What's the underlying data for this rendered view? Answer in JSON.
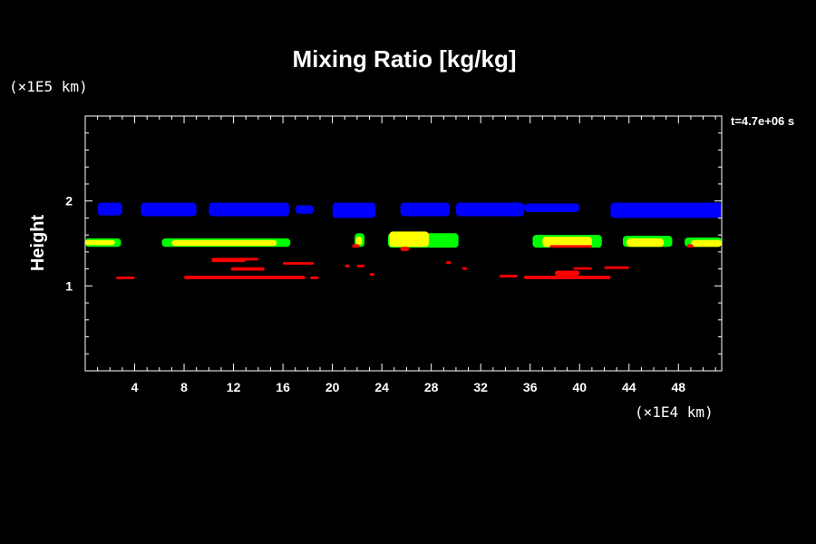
{
  "chart_data": {
    "type": "heatmap",
    "title": "Mixing Ratio [kg/kg]",
    "ylabel": "Height",
    "y_unit": "(×1E5 km)",
    "x_unit": "(×1E4 km)",
    "time_label": "t=4.7e+06 s",
    "xlim": [
      0,
      51.5
    ],
    "ylim": [
      0,
      3
    ],
    "x_ticks": [
      4,
      8,
      12,
      16,
      20,
      24,
      28,
      32,
      36,
      40,
      44,
      48
    ],
    "y_ticks": [
      1,
      2
    ],
    "grid": false,
    "colors": {
      "blue": "#0000ff",
      "green": "#00ff00",
      "yellow": "#ffff00",
      "red": "#ff0000"
    },
    "regions": [
      {
        "color": "blue",
        "x": [
          1.0,
          3.0
        ],
        "y": [
          1.83,
          1.98
        ]
      },
      {
        "color": "blue",
        "x": [
          4.5,
          9.0
        ],
        "y": [
          1.82,
          1.98
        ]
      },
      {
        "color": "blue",
        "x": [
          10.0,
          16.5
        ],
        "y": [
          1.82,
          1.98
        ]
      },
      {
        "color": "blue",
        "x": [
          17.0,
          18.5
        ],
        "y": [
          1.85,
          1.95
        ]
      },
      {
        "color": "blue",
        "x": [
          20.0,
          23.5
        ],
        "y": [
          1.8,
          1.98
        ]
      },
      {
        "color": "blue",
        "x": [
          25.5,
          29.5
        ],
        "y": [
          1.82,
          1.98
        ]
      },
      {
        "color": "blue",
        "x": [
          30.0,
          35.5
        ],
        "y": [
          1.82,
          1.98
        ]
      },
      {
        "color": "blue",
        "x": [
          35.5,
          40.0
        ],
        "y": [
          1.87,
          1.97
        ]
      },
      {
        "color": "blue",
        "x": [
          42.5,
          51.5
        ],
        "y": [
          1.8,
          1.98
        ]
      },
      {
        "color": "green",
        "x": [
          0.0,
          2.9
        ],
        "y": [
          1.46,
          1.56
        ]
      },
      {
        "color": "yellow",
        "x": [
          0.0,
          2.4
        ],
        "y": [
          1.48,
          1.54
        ]
      },
      {
        "color": "green",
        "x": [
          6.2,
          16.6
        ],
        "y": [
          1.46,
          1.56
        ]
      },
      {
        "color": "yellow",
        "x": [
          7.0,
          15.5
        ],
        "y": [
          1.47,
          1.54
        ]
      },
      {
        "color": "green",
        "x": [
          21.8,
          22.6
        ],
        "y": [
          1.46,
          1.62
        ]
      },
      {
        "color": "yellow",
        "x": [
          21.9,
          22.4
        ],
        "y": [
          1.48,
          1.58
        ]
      },
      {
        "color": "red",
        "x": [
          21.6,
          22.2
        ],
        "y": [
          1.45,
          1.49
        ]
      },
      {
        "color": "green",
        "x": [
          24.5,
          30.2
        ],
        "y": [
          1.45,
          1.62
        ]
      },
      {
        "color": "yellow",
        "x": [
          24.6,
          27.8
        ],
        "y": [
          1.46,
          1.64
        ]
      },
      {
        "color": "red",
        "x": [
          25.5,
          26.2
        ],
        "y": [
          1.41,
          1.46
        ]
      },
      {
        "color": "green",
        "x": [
          36.2,
          41.8
        ],
        "y": [
          1.45,
          1.6
        ]
      },
      {
        "color": "yellow",
        "x": [
          37.0,
          41.0
        ],
        "y": [
          1.46,
          1.58
        ]
      },
      {
        "color": "red",
        "x": [
          37.6,
          41.0
        ],
        "y": [
          1.45,
          1.48
        ]
      },
      {
        "color": "green",
        "x": [
          43.5,
          47.5
        ],
        "y": [
          1.46,
          1.59
        ]
      },
      {
        "color": "yellow",
        "x": [
          43.8,
          46.8
        ],
        "y": [
          1.46,
          1.56
        ]
      },
      {
        "color": "green",
        "x": [
          48.5,
          51.5
        ],
        "y": [
          1.46,
          1.57
        ]
      },
      {
        "color": "yellow",
        "x": [
          49.0,
          51.5
        ],
        "y": [
          1.46,
          1.54
        ]
      },
      {
        "color": "red",
        "x": [
          48.7,
          49.2
        ],
        "y": [
          1.45,
          1.49
        ]
      },
      {
        "color": "red",
        "x": [
          2.5,
          4.0
        ],
        "y": [
          1.08,
          1.11
        ]
      },
      {
        "color": "red",
        "x": [
          8.0,
          17.8
        ],
        "y": [
          1.08,
          1.12
        ]
      },
      {
        "color": "red",
        "x": [
          18.2,
          18.9
        ],
        "y": [
          1.08,
          1.11
        ]
      },
      {
        "color": "red",
        "x": [
          10.2,
          13.0
        ],
        "y": [
          1.28,
          1.33
        ]
      },
      {
        "color": "red",
        "x": [
          11.8,
          14.5
        ],
        "y": [
          1.18,
          1.22
        ]
      },
      {
        "color": "red",
        "x": [
          12.5,
          14.0
        ],
        "y": [
          1.3,
          1.33
        ]
      },
      {
        "color": "red",
        "x": [
          16.0,
          18.5
        ],
        "y": [
          1.25,
          1.28
        ]
      },
      {
        "color": "red",
        "x": [
          35.5,
          42.5
        ],
        "y": [
          1.08,
          1.12
        ]
      },
      {
        "color": "red",
        "x": [
          38.0,
          40.0
        ],
        "y": [
          1.12,
          1.18
        ]
      },
      {
        "color": "red",
        "x": [
          39.5,
          41.0
        ],
        "y": [
          1.19,
          1.22
        ]
      },
      {
        "color": "red",
        "x": [
          42.0,
          44.0
        ],
        "y": [
          1.2,
          1.23
        ]
      },
      {
        "color": "red",
        "x": [
          33.5,
          35.0
        ],
        "y": [
          1.1,
          1.13
        ]
      },
      {
        "color": "red",
        "x": [
          23.0,
          23.4
        ],
        "y": [
          1.12,
          1.15
        ]
      },
      {
        "color": "red",
        "x": [
          21.0,
          21.4
        ],
        "y": [
          1.22,
          1.25
        ]
      },
      {
        "color": "red",
        "x": [
          22.0,
          22.6
        ],
        "y": [
          1.22,
          1.25
        ]
      },
      {
        "color": "red",
        "x": [
          29.2,
          29.6
        ],
        "y": [
          1.26,
          1.29
        ]
      },
      {
        "color": "red",
        "x": [
          30.5,
          30.9
        ],
        "y": [
          1.19,
          1.22
        ]
      }
    ]
  }
}
